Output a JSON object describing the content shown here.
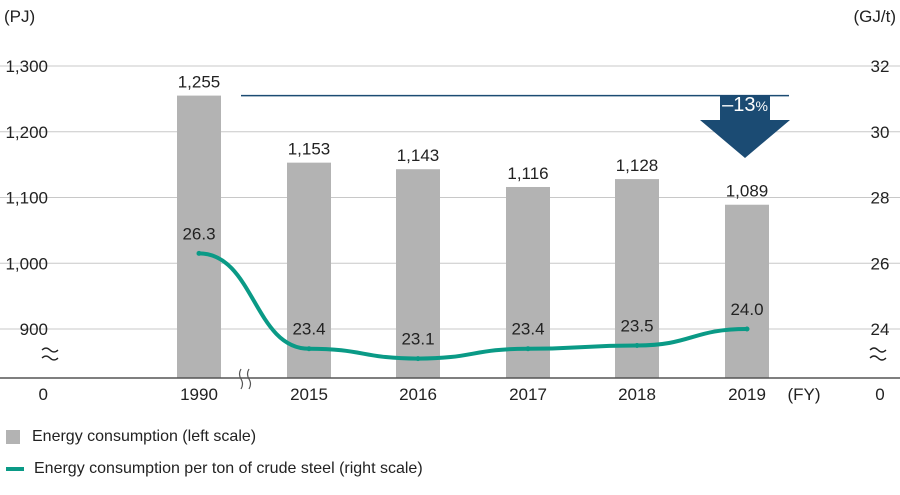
{
  "colors": {
    "bar": "#b3b3b3",
    "line": "#0a9a86",
    "arrow": "#1b4b73",
    "axis": "#555555",
    "grid": "#c8c8c8",
    "text": "#222222"
  },
  "legend": {
    "bar_label": "Energy consumption (left scale)",
    "line_label": "Energy consumption per ton of crude steel (right scale)"
  },
  "reduction_label": "–13",
  "reduction_unit": "%",
  "chart_data": {
    "type": "bar",
    "categories": [
      "1990",
      "2015",
      "2016",
      "2017",
      "2018",
      "2019"
    ],
    "x_unit": "(FY)",
    "left_axis": {
      "unit": "(PJ)",
      "ticks": [
        "1,300",
        "1,200",
        "1,100",
        "1,000",
        "900",
        "0"
      ],
      "range": [
        900,
        1300
      ],
      "break": true
    },
    "right_axis": {
      "unit": "(GJ/t)",
      "ticks": [
        "32",
        "30",
        "28",
        "26",
        "24",
        "0"
      ],
      "range": [
        24,
        32
      ],
      "break": true
    },
    "series": [
      {
        "name": "Energy consumption (left scale)",
        "type": "bar",
        "axis": "left",
        "values": [
          1255,
          1153,
          1143,
          1116,
          1128,
          1089
        ],
        "labels": [
          "1,255",
          "1,153",
          "1,143",
          "1,116",
          "1,128",
          "1,089"
        ]
      },
      {
        "name": "Energy consumption per ton of crude steel (right scale)",
        "type": "line",
        "axis": "right",
        "values": [
          26.3,
          23.4,
          23.1,
          23.4,
          23.5,
          24.0
        ],
        "labels": [
          "26.3",
          "23.4",
          "23.1",
          "23.4",
          "23.5",
          "24.0"
        ]
      }
    ],
    "annotation": "-13%"
  }
}
